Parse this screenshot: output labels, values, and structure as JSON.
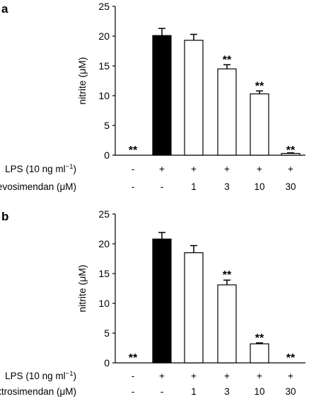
{
  "chart_data": [
    {
      "type": "bar",
      "panel_label": "a",
      "ylabel": "nitrite (μM)",
      "ylim": [
        0,
        25
      ],
      "yticks": [
        0,
        5,
        10,
        15,
        20,
        25
      ],
      "values": [
        0,
        20.1,
        19.3,
        14.5,
        10.3,
        0.3
      ],
      "errors": [
        0,
        1.2,
        1.0,
        0.7,
        0.5,
        0.1
      ],
      "fills": [
        "#ffffff",
        "#000000",
        "#ffffff",
        "#ffffff",
        "#ffffff",
        "#ffffff"
      ],
      "significance": [
        "**",
        "",
        "",
        "**",
        "**",
        "**"
      ],
      "rows": [
        {
          "label": "LPS (10 ng ml",
          "label_sup": "−1",
          "label_tail": ")",
          "cells": [
            "-",
            "+",
            "+",
            "+",
            "+",
            "+"
          ]
        },
        {
          "label": "Levosimendan (μM)",
          "cells": [
            "-",
            "-",
            "1",
            "3",
            "10",
            "30"
          ]
        }
      ]
    },
    {
      "type": "bar",
      "panel_label": "b",
      "ylabel": "nitrite (μM)",
      "ylim": [
        0,
        25
      ],
      "yticks": [
        0,
        5,
        10,
        15,
        20,
        25
      ],
      "values": [
        0,
        20.8,
        18.5,
        13.1,
        3.2,
        0
      ],
      "errors": [
        0,
        1.1,
        1.2,
        0.8,
        0.15,
        0
      ],
      "fills": [
        "#ffffff",
        "#000000",
        "#ffffff",
        "#ffffff",
        "#ffffff",
        "#ffffff"
      ],
      "significance": [
        "**",
        "",
        "",
        "**",
        "**",
        "**"
      ],
      "rows": [
        {
          "label": "LPS (10 ng ml",
          "label_sup": "−1",
          "label_tail": ")",
          "cells": [
            "-",
            "+",
            "+",
            "+",
            "+",
            "+"
          ]
        },
        {
          "label": "Dextrosimendan (μM)",
          "cells": [
            "-",
            "-",
            "1",
            "3",
            "10",
            "30"
          ]
        }
      ]
    }
  ]
}
